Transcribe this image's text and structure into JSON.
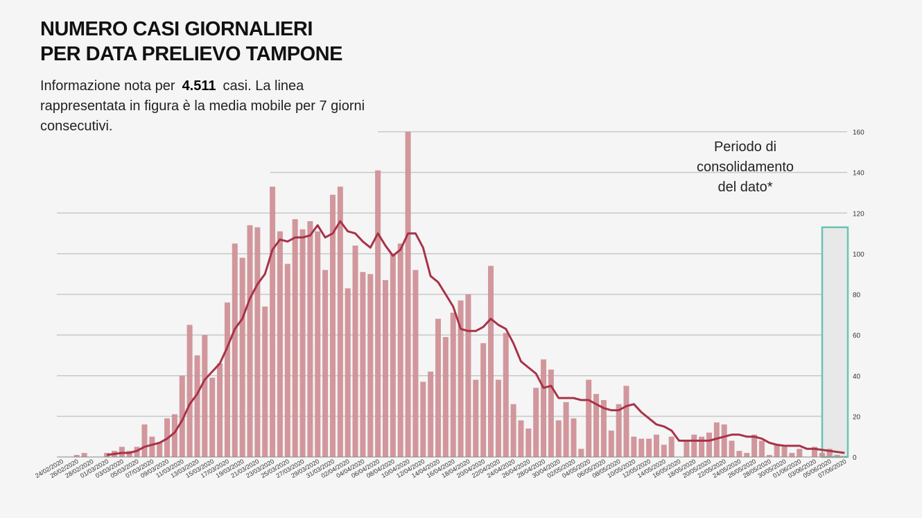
{
  "header": {
    "title_line1": "NUMERO CASI GIORNALIERI",
    "title_line2": "PER DATA PRELIEVO TAMPONE",
    "subtitle_before": "Informazione nota per",
    "subtitle_count": "4.511",
    "subtitle_after": "casi. La linea rappresentata in figura è la media mobile per 7 giorni consecutivi."
  },
  "annotation": {
    "line1": "Periodo di",
    "line2": "consolidamento",
    "line3": "del dato*"
  },
  "colors": {
    "bar": "#cf9197",
    "line": "#a83248",
    "box_border": "#6cc2b4",
    "box_fill": "#e8e8e8",
    "grid": "#c8c8c8"
  },
  "chart_data": {
    "type": "bar",
    "title": "NUMERO CASI GIORNALIERI PER DATA PRELIEVO TAMPONE",
    "xlabel": "",
    "ylabel": "",
    "ylim": [
      0,
      160
    ],
    "yticks": [
      0,
      20,
      40,
      60,
      80,
      100,
      120,
      140,
      160
    ],
    "y_axis_side": "right",
    "grid": true,
    "start_date": "24/02/2020",
    "end_date": "07/06/2020",
    "xtick_labels": [
      "24/02/2020",
      "26/02/2020",
      "28/02/2020",
      "01/03/2020",
      "03/03/2020",
      "05/03/2020",
      "07/03/2020",
      "09/03/2020",
      "11/03/2020",
      "13/03/2020",
      "15/03/2020",
      "17/03/2020",
      "19/03/2020",
      "21/03/2020",
      "23/03/2020",
      "25/03/2020",
      "27/03/2020",
      "29/03/2020",
      "31/03/2020",
      "02/04/2020",
      "04/04/2020",
      "06/04/2020",
      "08/04/2020",
      "10/04/2020",
      "12/04/2020",
      "14/04/2020",
      "16/04/2020",
      "18/04/2020",
      "20/04/2020",
      "22/04/2020",
      "24/04/2020",
      "26/04/2020",
      "28/04/2020",
      "30/04/2020",
      "02/05/2020",
      "04/05/2020",
      "06/05/2020",
      "08/05/2020",
      "10/05/2020",
      "12/05/2020",
      "14/05/2020",
      "16/05/2020",
      "18/05/2020",
      "20/05/2020",
      "22/05/2020",
      "24/05/2020",
      "26/05/2020",
      "28/05/2020",
      "30/05/2020",
      "01/06/2020",
      "03/06/2020",
      "05/06/2020",
      "07/06/2020"
    ],
    "series": [
      {
        "name": "Casi giornalieri",
        "type": "bar",
        "values": [
          0,
          0,
          1,
          2,
          0,
          0,
          2,
          3,
          5,
          3,
          5,
          16,
          10,
          7,
          19,
          21,
          40,
          65,
          50,
          60,
          39,
          46,
          76,
          105,
          98,
          114,
          113,
          74,
          133,
          111,
          95,
          117,
          112,
          116,
          111,
          92,
          129,
          133,
          83,
          104,
          91,
          90,
          141,
          87,
          100,
          105,
          160,
          92,
          37,
          42,
          68,
          59,
          71,
          77,
          80,
          38,
          56,
          94,
          38,
          61,
          26,
          18,
          14,
          34,
          48,
          43,
          18,
          27,
          19,
          4,
          38,
          31,
          28,
          13,
          26,
          35,
          10,
          9,
          9,
          11,
          6,
          10,
          0,
          8,
          11,
          10,
          12,
          17,
          16,
          8,
          3,
          2,
          11,
          8,
          1,
          6,
          5,
          2,
          4,
          0,
          5,
          2,
          4,
          1,
          0
        ]
      },
      {
        "name": "Media mobile 7 giorni",
        "type": "line",
        "values": [
          null,
          null,
          null,
          null,
          null,
          null,
          1,
          1.5,
          2,
          2,
          3,
          5,
          6,
          7,
          9,
          12,
          18,
          26,
          31,
          38,
          42,
          46,
          54,
          63,
          68,
          78,
          85,
          90,
          102,
          107,
          106,
          108,
          108,
          109,
          114,
          108,
          110,
          116,
          111,
          110,
          106,
          103,
          110,
          104,
          99,
          102,
          110,
          110,
          103,
          89,
          86,
          80,
          74,
          63,
          62,
          62,
          64,
          68,
          65,
          63,
          56,
          47,
          44,
          41,
          34,
          35,
          29,
          29,
          29,
          28,
          28,
          26,
          24,
          23,
          23,
          25,
          26,
          22,
          19,
          16,
          15,
          13,
          8,
          8,
          8,
          8,
          8,
          9,
          10,
          11,
          11,
          10,
          10,
          9,
          7,
          6,
          5.5,
          5.5,
          5.5,
          4,
          4,
          3.5,
          3,
          2.5,
          2
        ]
      }
    ],
    "highlight_period": {
      "from": "05/06/2020",
      "to": "07/06/2020",
      "label": "Periodo di consolidamento del dato*"
    }
  }
}
